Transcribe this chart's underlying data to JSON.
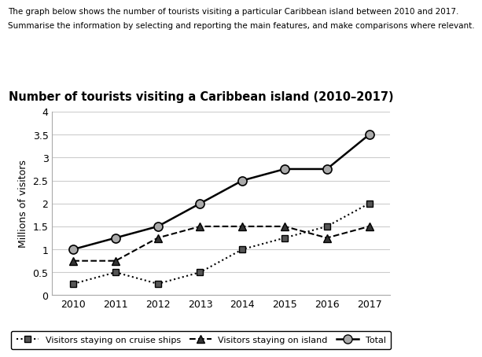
{
  "title": "Number of tourists visiting a Caribbean island (2010–2017)",
  "header_line1": "The graph below shows the number of tourists visiting a particular Caribbean island between 2010 and 2017.",
  "header_line2": "Summarise the information by selecting and reporting the main features, and make comparisons where relevant.",
  "ylabel": "Millions of visitors",
  "years": [
    2010,
    2011,
    2012,
    2013,
    2014,
    2015,
    2016,
    2017
  ],
  "cruise_ships": [
    0.25,
    0.5,
    0.25,
    0.5,
    1.0,
    1.25,
    1.5,
    2.0
  ],
  "island": [
    0.75,
    0.75,
    1.25,
    1.5,
    1.5,
    1.5,
    1.25,
    1.5
  ],
  "total": [
    1.0,
    1.25,
    1.5,
    2.0,
    2.5,
    2.75,
    2.75,
    3.5
  ],
  "ylim": [
    0,
    4
  ],
  "yticks": [
    0,
    0.5,
    1.0,
    1.5,
    2.0,
    2.5,
    3.0,
    3.5,
    4.0
  ],
  "bg_color": "#ffffff",
  "grid_color": "#cccccc",
  "line_color": "#000000",
  "legend_label_cruise": "Visitors staying on cruise ships",
  "legend_label_island": "Visitors staying on island",
  "legend_label_total": "Total",
  "marker_fill_total": "#aaaaaa"
}
